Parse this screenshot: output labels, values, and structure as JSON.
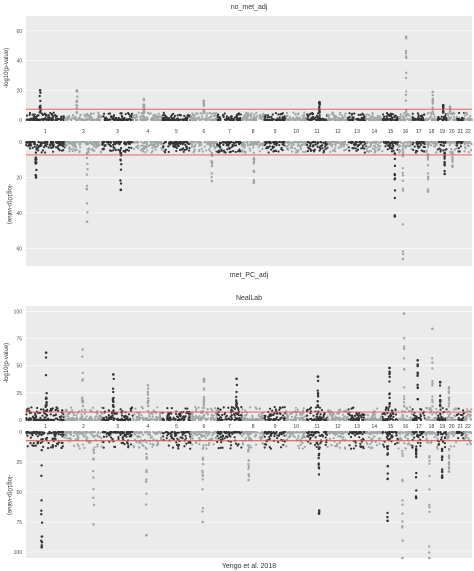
{
  "chart_data": [
    {
      "type": "scatter",
      "subtype": "miami",
      "title_top": "no_met_adj",
      "title_bottom": "met_PC_adj",
      "ylabel": "-log10(p-value)",
      "top_ylim": [
        0,
        70
      ],
      "bottom_ylim": [
        0,
        70
      ],
      "top_ticks": [
        0,
        20,
        40,
        60
      ],
      "bottom_ticks": [
        0,
        20,
        40,
        60
      ],
      "threshold": 7.3,
      "chromosomes": [
        "1",
        "2",
        "3",
        "4",
        "5",
        "6",
        "7",
        "8",
        "9",
        "10",
        "11",
        "12",
        "13",
        "14",
        "15",
        "16",
        "17",
        "18",
        "19",
        "20",
        "21",
        "22"
      ],
      "colors": {
        "odd": "#333333",
        "even": "#a0a6a6",
        "threshold": "#e05050",
        "panel": "#ebebeb",
        "grid": "#ffffff"
      },
      "peaks_top": [
        {
          "chr": "1",
          "y": 20
        },
        {
          "chr": "2",
          "y": 20
        },
        {
          "chr": "4",
          "y": 14
        },
        {
          "chr": "6",
          "y": 13
        },
        {
          "chr": "11",
          "y": 12
        },
        {
          "chr": "16",
          "y": 56
        },
        {
          "chr": "18",
          "y": 19
        },
        {
          "chr": "19",
          "y": 10
        },
        {
          "chr": "20",
          "y": 9
        }
      ],
      "peaks_bottom": [
        {
          "chr": "1",
          "y": 20
        },
        {
          "chr": "2",
          "y": 45
        },
        {
          "chr": "3",
          "y": 27
        },
        {
          "chr": "6",
          "y": 22
        },
        {
          "chr": "8",
          "y": 23
        },
        {
          "chr": "15",
          "y": 42
        },
        {
          "chr": "16",
          "y": 66
        },
        {
          "chr": "18",
          "y": 28
        },
        {
          "chr": "19",
          "y": 18
        },
        {
          "chr": "20",
          "y": 14
        }
      ]
    },
    {
      "type": "scatter",
      "subtype": "miami",
      "title_top": "NealLab",
      "title_bottom": "Yengo et al. 2018",
      "ylabel": "-log10(p-value)",
      "top_ylim": [
        0,
        105
      ],
      "bottom_ylim": [
        0,
        105
      ],
      "top_ticks": [
        0,
        25,
        50,
        75,
        100
      ],
      "bottom_ticks": [
        0,
        25,
        50,
        75,
        100
      ],
      "threshold": 7.3,
      "chromosomes": [
        "1",
        "2",
        "3",
        "4",
        "5",
        "6",
        "7",
        "8",
        "9",
        "10",
        "11",
        "12",
        "13",
        "14",
        "15",
        "16",
        "17",
        "18",
        "19",
        "20",
        "21",
        "22"
      ],
      "colors": {
        "odd": "#333333",
        "even": "#a0a6a6",
        "threshold": "#e05050",
        "panel": "#ebebeb",
        "grid": "#ffffff"
      },
      "peaks_top": [
        {
          "chr": "1",
          "y": 62
        },
        {
          "chr": "2",
          "y": 65
        },
        {
          "chr": "3",
          "y": 42
        },
        {
          "chr": "4",
          "y": 32
        },
        {
          "chr": "6",
          "y": 38
        },
        {
          "chr": "7",
          "y": 38
        },
        {
          "chr": "11",
          "y": 40
        },
        {
          "chr": "15",
          "y": 48
        },
        {
          "chr": "16",
          "y": 98
        },
        {
          "chr": "17",
          "y": 55
        },
        {
          "chr": "18",
          "y": 84
        },
        {
          "chr": "19",
          "y": 35
        },
        {
          "chr": "20",
          "y": 30
        }
      ],
      "peaks_bottom": [
        {
          "chr": "1",
          "y": 96
        },
        {
          "chr": "2",
          "y": 77
        },
        {
          "chr": "4",
          "y": 86
        },
        {
          "chr": "6",
          "y": 75
        },
        {
          "chr": "8",
          "y": 40
        },
        {
          "chr": "11",
          "y": 68
        },
        {
          "chr": "15",
          "y": 74
        },
        {
          "chr": "16",
          "y": 106
        },
        {
          "chr": "17",
          "y": 55
        },
        {
          "chr": "18",
          "y": 105
        },
        {
          "chr": "19",
          "y": 38
        },
        {
          "chr": "20",
          "y": 33
        }
      ]
    }
  ]
}
